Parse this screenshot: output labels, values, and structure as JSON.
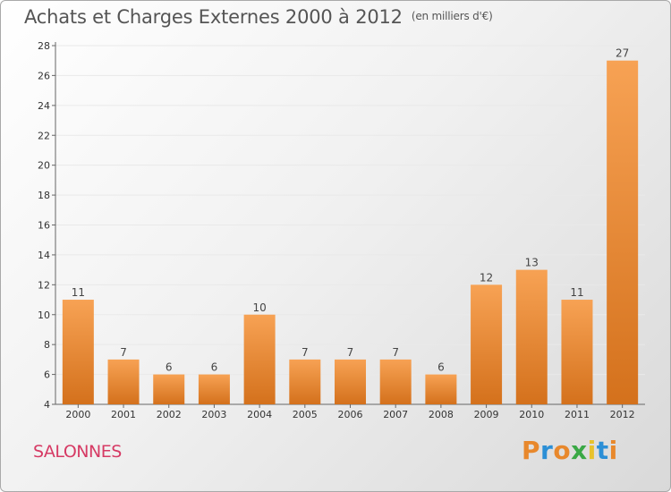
{
  "chart_data": {
    "type": "bar",
    "title": "Achats et Charges Externes 2000 à 2012",
    "subtitle": "(en milliers d'€)",
    "categories": [
      "2000",
      "2001",
      "2002",
      "2003",
      "2004",
      "2005",
      "2006",
      "2007",
      "2008",
      "2009",
      "2010",
      "2011",
      "2012"
    ],
    "values": [
      11,
      7,
      6,
      6,
      10,
      7,
      7,
      7,
      6,
      12,
      13,
      11,
      27
    ],
    "ylim": [
      4,
      28
    ],
    "yticks": [
      4,
      6,
      8,
      10,
      12,
      14,
      16,
      18,
      20,
      22,
      24,
      26,
      28
    ],
    "grid": true,
    "bar_color_top": "#f7a254",
    "bar_color_bottom": "#d4711c"
  },
  "footer": {
    "place_name": "SALONNES",
    "brand_letters": [
      "P",
      "r",
      "o",
      "x",
      "i",
      "t",
      "i"
    ],
    "brand_colors": [
      "#e8882c",
      "#2b8fd6",
      "#e8882c",
      "#3aa845",
      "#e8c22c",
      "#2b8fd6",
      "#e8882c"
    ]
  }
}
